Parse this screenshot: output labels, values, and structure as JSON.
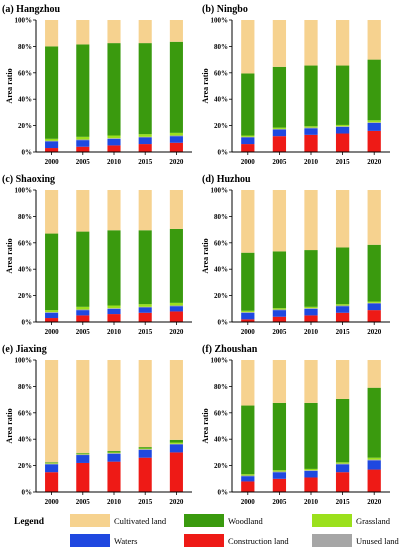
{
  "chart_data": [
    {
      "type": "bar",
      "stacked": true,
      "title": "(a) Hangzhou",
      "categories": [
        "2000",
        "2005",
        "2010",
        "2015",
        "2020"
      ],
      "ylabel": "Area ratio",
      "ylim": [
        0,
        100
      ],
      "yticks": [
        "0%",
        "20%",
        "40%",
        "60%",
        "80%",
        "100%"
      ],
      "series": [
        {
          "name": "Construction land",
          "values": [
            3,
            4,
            5,
            6,
            7
          ]
        },
        {
          "name": "Waters",
          "values": [
            5,
            5,
            5,
            5,
            5
          ]
        },
        {
          "name": "Unused land",
          "values": [
            0.5,
            0.5,
            0.5,
            0.5,
            0.5
          ]
        },
        {
          "name": "Grassland",
          "values": [
            1.5,
            2,
            2,
            2,
            2
          ]
        },
        {
          "name": "Woodland",
          "values": [
            70,
            70,
            70,
            69,
            69
          ]
        },
        {
          "name": "Cultivated land",
          "values": [
            20,
            18.5,
            17.5,
            17.5,
            16.5
          ]
        }
      ]
    },
    {
      "type": "bar",
      "stacked": true,
      "title": "(b) Ningbo",
      "categories": [
        "2000",
        "2005",
        "2010",
        "2015",
        "2020"
      ],
      "ylabel": "Area ratio",
      "ylim": [
        0,
        100
      ],
      "yticks": [
        "0%",
        "20%",
        "40%",
        "60%",
        "80%",
        "100%"
      ],
      "series": [
        {
          "name": "Construction land",
          "values": [
            6,
            12,
            13,
            14,
            16
          ]
        },
        {
          "name": "Waters",
          "values": [
            5,
            5,
            5,
            5,
            6
          ]
        },
        {
          "name": "Unused land",
          "values": [
            0.5,
            0.5,
            0.5,
            0.5,
            0.5
          ]
        },
        {
          "name": "Grassland",
          "values": [
            1,
            1,
            1,
            1,
            1.5
          ]
        },
        {
          "name": "Woodland",
          "values": [
            47,
            46,
            46,
            45,
            46
          ]
        },
        {
          "name": "Cultivated land",
          "values": [
            40.5,
            35.5,
            34.5,
            34.5,
            30
          ]
        }
      ]
    },
    {
      "type": "bar",
      "stacked": true,
      "title": "(c) Shaoxing",
      "categories": [
        "2000",
        "2005",
        "2010",
        "2015",
        "2020"
      ],
      "ylabel": "Area ratio",
      "ylim": [
        0,
        100
      ],
      "yticks": [
        "0%",
        "20%",
        "40%",
        "60%",
        "80%",
        "100%"
      ],
      "series": [
        {
          "name": "Construction land",
          "values": [
            3,
            5,
            6,
            7,
            8
          ]
        },
        {
          "name": "Waters",
          "values": [
            4,
            4,
            4,
            4,
            4
          ]
        },
        {
          "name": "Unused land",
          "values": [
            0.5,
            0.5,
            0.5,
            0.5,
            0.5
          ]
        },
        {
          "name": "Grassland",
          "values": [
            1.5,
            2,
            2,
            2,
            2
          ]
        },
        {
          "name": "Woodland",
          "values": [
            58,
            57,
            57,
            56,
            56
          ]
        },
        {
          "name": "Cultivated land",
          "values": [
            33,
            31.5,
            30.5,
            30.5,
            29.5
          ]
        }
      ]
    },
    {
      "type": "bar",
      "stacked": true,
      "title": "(d) Huzhou",
      "categories": [
        "2000",
        "2005",
        "2010",
        "2015",
        "2020"
      ],
      "ylabel": "Area ratio",
      "ylim": [
        0,
        100
      ],
      "yticks": [
        "0%",
        "20%",
        "40%",
        "60%",
        "80%",
        "100%"
      ],
      "series": [
        {
          "name": "Construction land",
          "values": [
            2,
            4,
            5,
            7,
            9
          ]
        },
        {
          "name": "Waters",
          "values": [
            5,
            5,
            5,
            5,
            5
          ]
        },
        {
          "name": "Unused land",
          "values": [
            0.5,
            0.5,
            0.5,
            0.5,
            0.5
          ]
        },
        {
          "name": "Grassland",
          "values": [
            1,
            1,
            1,
            1,
            1
          ]
        },
        {
          "name": "Woodland",
          "values": [
            44,
            43,
            43,
            43,
            43
          ]
        },
        {
          "name": "Cultivated land",
          "values": [
            47.5,
            46.5,
            45.5,
            43.5,
            41.5
          ]
        }
      ]
    },
    {
      "type": "bar",
      "stacked": true,
      "title": "(e) Jiaxing",
      "categories": [
        "2000",
        "2005",
        "2010",
        "2015",
        "2020"
      ],
      "ylabel": "Area ratio",
      "ylim": [
        0,
        100
      ],
      "yticks": [
        "0%",
        "20%",
        "40%",
        "60%",
        "80%",
        "100%"
      ],
      "series": [
        {
          "name": "Construction land",
          "values": [
            15,
            22,
            23,
            26,
            30
          ]
        },
        {
          "name": "Waters",
          "values": [
            6,
            6,
            6,
            6,
            6
          ]
        },
        {
          "name": "Unused land",
          "values": [
            0.5,
            0.5,
            0.5,
            0.5,
            0.5
          ]
        },
        {
          "name": "Grassland",
          "values": [
            0.5,
            0.5,
            0.5,
            0.5,
            1
          ]
        },
        {
          "name": "Woodland",
          "values": [
            0.5,
            0.5,
            1,
            1,
            2
          ]
        },
        {
          "name": "Cultivated land",
          "values": [
            77.5,
            70.5,
            69,
            66,
            60.5
          ]
        }
      ]
    },
    {
      "type": "bar",
      "stacked": true,
      "title": "(f) Zhoushan",
      "categories": [
        "2000",
        "2005",
        "2010",
        "2015",
        "2020"
      ],
      "ylabel": "Area ratio",
      "ylim": [
        0,
        100
      ],
      "yticks": [
        "0%",
        "20%",
        "40%",
        "60%",
        "80%",
        "100%"
      ],
      "series": [
        {
          "name": "Construction land",
          "values": [
            8,
            10,
            11,
            15,
            17
          ]
        },
        {
          "name": "Waters",
          "values": [
            4,
            5,
            5,
            6,
            7
          ]
        },
        {
          "name": "Unused land",
          "values": [
            0.5,
            0.5,
            0.5,
            0.5,
            0.5
          ]
        },
        {
          "name": "Grassland",
          "values": [
            1,
            1,
            1,
            1,
            1.5
          ]
        },
        {
          "name": "Woodland",
          "values": [
            52,
            51,
            50,
            48,
            53
          ]
        },
        {
          "name": "Cultivated land",
          "values": [
            34.5,
            32.5,
            32.5,
            29.5,
            21
          ]
        }
      ]
    }
  ],
  "legend": {
    "title": "Legend",
    "items": [
      {
        "name": "Cultivated land",
        "color": "#f6d28f"
      },
      {
        "name": "Woodland",
        "color": "#3a9a0e"
      },
      {
        "name": "Grassland",
        "color": "#9be01c"
      },
      {
        "name": "Waters",
        "color": "#1f48e0"
      },
      {
        "name": "Construction land",
        "color": "#ee1a16"
      },
      {
        "name": "Unused land",
        "color": "#a6a6a6"
      }
    ]
  }
}
